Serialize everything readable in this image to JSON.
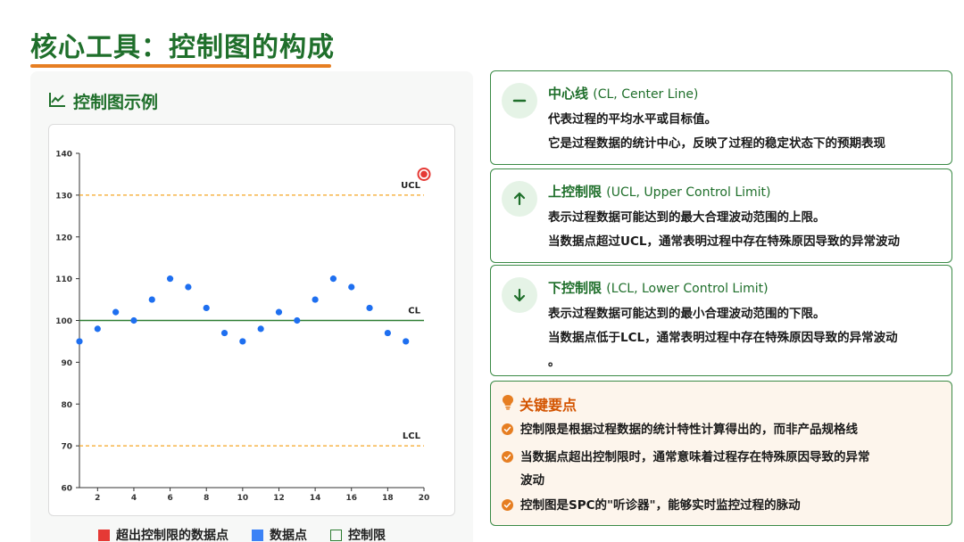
{
  "page": {
    "title": "核心工具：控制图的构成"
  },
  "left_panel": {
    "heading": "控制图示例",
    "heading_icon": "line-chart-icon",
    "legend": [
      {
        "label": "超出控制限的数据点",
        "color": "#e53935",
        "kind": "filled"
      },
      {
        "label": "数据点",
        "color": "#3b82f6",
        "kind": "filled"
      },
      {
        "label": "控制限",
        "color": "#2e7d32",
        "kind": "outline"
      }
    ]
  },
  "chart_data": {
    "type": "scatter",
    "x": [
      1,
      2,
      3,
      4,
      5,
      6,
      7,
      8,
      9,
      10,
      11,
      12,
      13,
      14,
      15,
      16,
      17,
      18,
      19
    ],
    "y": [
      95,
      98,
      102,
      100,
      105,
      110,
      108,
      103,
      97,
      95,
      98,
      102,
      100,
      105,
      110,
      108,
      103,
      97,
      95
    ],
    "out_of_control_points": [
      {
        "x": 20,
        "y": 135
      }
    ],
    "xlim": [
      1,
      20
    ],
    "ylim": [
      60,
      140
    ],
    "x_ticks": [
      2,
      4,
      6,
      8,
      10,
      12,
      14,
      16,
      18,
      20
    ],
    "y_ticks": [
      60,
      70,
      80,
      90,
      100,
      110,
      120,
      130,
      140
    ],
    "lines": [
      {
        "label": "UCL",
        "y": 130,
        "color": "#f5a623",
        "style": "dashed"
      },
      {
        "label": "CL",
        "y": 100,
        "color": "#2e7d32",
        "style": "solid"
      },
      {
        "label": "LCL",
        "y": 70,
        "color": "#f5a623",
        "style": "dashed"
      }
    ],
    "point_color": "#1e6ff0",
    "outlier_color": "#e53935",
    "grid": false
  },
  "cards": [
    {
      "icon": "minus-icon",
      "title": "中心线",
      "title_en": "(CL, Center Line)",
      "lines": [
        "代表过程的平均水平或目标值。",
        "它是过程数据的统计中心，反映了过程的稳定状态下的预期表现"
      ]
    },
    {
      "icon": "arrow-up-icon",
      "title": "上控制限",
      "title_en": "(UCL, Upper Control Limit)",
      "lines": [
        "表示过程数据可能达到的最大合理波动范围的上限。",
        "当数据点超过UCL，通常表明过程中存在特殊原因导致的异常波动"
      ]
    },
    {
      "icon": "arrow-down-icon",
      "title": "下控制限",
      "title_en": "(LCL, Lower Control Limit)",
      "lines": [
        "表示过程数据可能达到的最小合理波动范围的下限。",
        "当数据点低于LCL，通常表明过程中存在特殊原因导致的异常波动",
        "。"
      ]
    }
  ],
  "key_points": {
    "heading": "关键要点",
    "heading_icon": "lightbulb-icon",
    "items": [
      {
        "lines": [
          "控制限是根据过程数据的统计特性计算得出的，而非产品规格线"
        ]
      },
      {
        "lines": [
          "当数据点超出控制限时，通常意味着过程存在特殊原因导致的异常",
          "波动"
        ]
      },
      {
        "lines": [
          "控制图是SPC的\"听诊器\"，能够实时监控过程的脉动"
        ]
      }
    ]
  },
  "colors": {
    "brand_green": "#1f6f2b",
    "accent_orange": "#e67e22"
  }
}
